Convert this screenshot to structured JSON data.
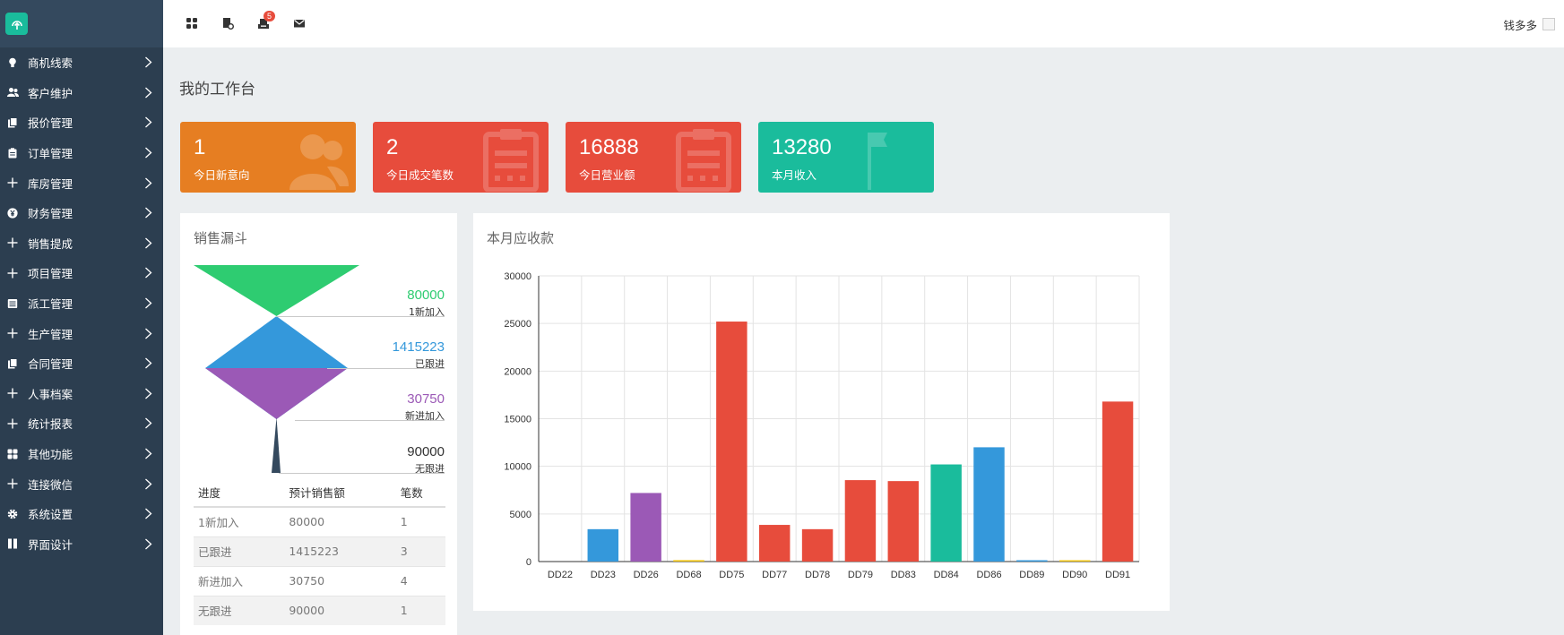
{
  "topbar": {
    "icons": [
      "apps-icon",
      "document-icon",
      "inbox-icon",
      "mail-icon"
    ],
    "notification_count": "5",
    "user_name": "钱多多"
  },
  "sidebar": {
    "items": [
      {
        "label": "商机线索",
        "icon": "lightbulb-icon"
      },
      {
        "label": "客户维护",
        "icon": "users-icon"
      },
      {
        "label": "报价管理",
        "icon": "files-icon"
      },
      {
        "label": "订单管理",
        "icon": "clipboard-icon"
      },
      {
        "label": "库房管理",
        "icon": "plus-icon"
      },
      {
        "label": "财务管理",
        "icon": "yen-icon"
      },
      {
        "label": "销售提成",
        "icon": "plus-icon"
      },
      {
        "label": "项目管理",
        "icon": "plus-icon"
      },
      {
        "label": "派工管理",
        "icon": "list-icon"
      },
      {
        "label": "生产管理",
        "icon": "plus-icon"
      },
      {
        "label": "合同管理",
        "icon": "files-icon"
      },
      {
        "label": "人事档案",
        "icon": "plus-icon"
      },
      {
        "label": "统计报表",
        "icon": "plus-icon"
      },
      {
        "label": "其他功能",
        "icon": "grid-icon"
      },
      {
        "label": "连接微信",
        "icon": "plus-icon"
      },
      {
        "label": "系统设置",
        "icon": "gear-icon"
      },
      {
        "label": "界面设计",
        "icon": "columns-icon"
      }
    ]
  },
  "page": {
    "title": "我的工作台"
  },
  "stats": [
    {
      "value": "1",
      "label": "今日新意向",
      "color": "#e67e22",
      "icon": "user-icon"
    },
    {
      "value": "2",
      "label": "今日成交笔数",
      "color": "#e74c3c",
      "icon": "clipboard-icon"
    },
    {
      "value": "16888",
      "label": "今日营业额",
      "color": "#e74c3c",
      "icon": "clipboard-icon"
    },
    {
      "value": "13280",
      "label": "本月收入",
      "color": "#1abc9c",
      "icon": "flag-icon"
    }
  ],
  "funnel": {
    "title": "销售漏斗",
    "stages": [
      {
        "value": "80000",
        "label": "1新加入",
        "color": "#2ecc71"
      },
      {
        "value": "1415223",
        "label": "已跟进",
        "color": "#3498db"
      },
      {
        "value": "30750",
        "label": "新进加入",
        "color": "#9b59b6"
      },
      {
        "value": "90000",
        "label": "无跟进",
        "color": "#34495e"
      }
    ],
    "table": {
      "headers": [
        "进度",
        "预计销售额",
        "笔数"
      ],
      "rows": [
        [
          "1新加入",
          "80000",
          "1"
        ],
        [
          "已跟进",
          "1415223",
          "3"
        ],
        [
          "新进加入",
          "30750",
          "4"
        ],
        [
          "无跟进",
          "90000",
          "1"
        ]
      ]
    }
  },
  "receivables": {
    "title": "本月应收款"
  },
  "chart_data": {
    "type": "bar",
    "title": "本月应收款",
    "categories": [
      "DD22",
      "DD23",
      "DD26",
      "DD68",
      "DD75",
      "DD77",
      "DD78",
      "DD79",
      "DD83",
      "DD84",
      "DD86",
      "DD89",
      "DD90",
      "DD91"
    ],
    "values": [
      0,
      3400,
      7200,
      150,
      25200,
      3850,
      3400,
      8550,
      8450,
      10200,
      12000,
      50,
      80,
      16800
    ],
    "colors": [
      "#e74c3c",
      "#3498db",
      "#9b59b6",
      "#f1c40f",
      "#e74c3c",
      "#e74c3c",
      "#e74c3c",
      "#e74c3c",
      "#e74c3c",
      "#1abc9c",
      "#3498db",
      "#3498db",
      "#f1c40f",
      "#e74c3c"
    ],
    "ylim": [
      0,
      30000
    ],
    "yticks": [
      0,
      5000,
      10000,
      15000,
      20000,
      25000,
      30000
    ],
    "grid": true
  }
}
